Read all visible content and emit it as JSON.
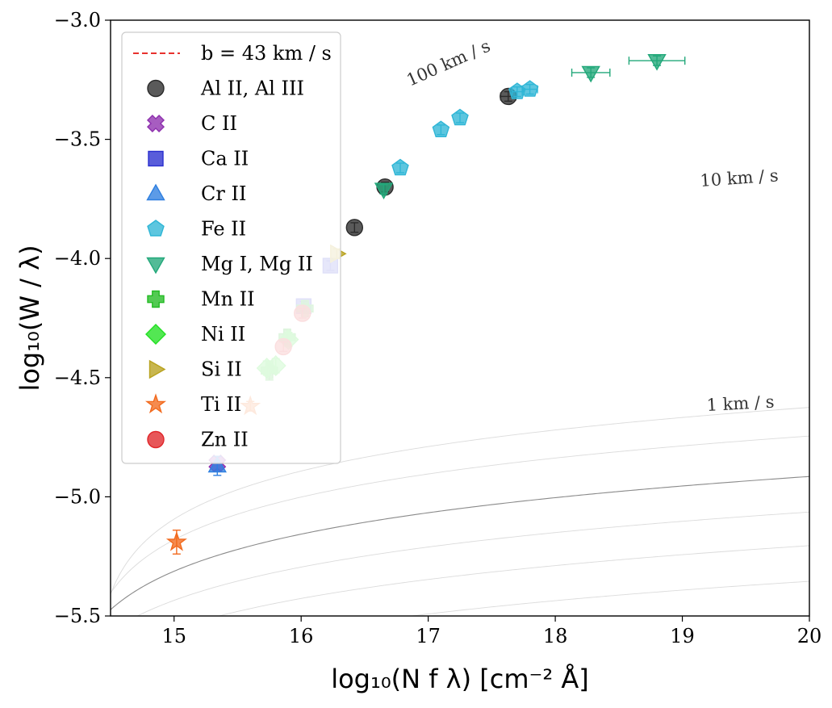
{
  "chart_data": {
    "type": "scatter",
    "title": "",
    "xlabel": "log₁₀(N f λ) [cm⁻² Å]",
    "ylabel": "log₁₀(W / λ)",
    "xlim": [
      14.5,
      20
    ],
    "ylim": [
      -5.5,
      -3.0
    ],
    "x_ticks": [
      "15",
      "16",
      "17",
      "18",
      "19",
      "20"
    ],
    "y_ticks": [
      "−3.0",
      "−3.5",
      "−4.0",
      "−4.5",
      "−5.0",
      "−5.5"
    ],
    "x_tick_values": [
      15,
      16,
      17,
      18,
      19,
      20
    ],
    "y_tick_values": [
      -3.0,
      -3.5,
      -4.0,
      -4.5,
      -5.0,
      -5.5
    ],
    "grid": false,
    "legend_placement": "top-left",
    "fit_curve": {
      "label": "b = 43 km / s",
      "b_kms": 43,
      "color": "#e8322e",
      "style": "dashed"
    },
    "reference_curves": [
      {
        "label": "100 km / s",
        "b_kms": 100
      },
      {
        "label": "10 km / s",
        "b_kms": 10
      },
      {
        "label": "1 km / s",
        "b_kms": 1
      }
    ],
    "series": [
      {
        "name": "Al II, Al III",
        "marker": "circle",
        "color": "#2b2b2b",
        "points": [
          [
            16.42,
            -3.87
          ],
          [
            16.66,
            -3.7
          ],
          [
            17.63,
            -3.32
          ]
        ],
        "xerr": [
          0,
          0,
          0.06
        ],
        "yerr": [
          0.02,
          0.02,
          0.02
        ]
      },
      {
        "name": "C II",
        "marker": "x",
        "color": "#8e2fae",
        "points": [
          [
            15.34,
            -4.86
          ]
        ],
        "xerr": [
          0
        ],
        "yerr": [
          0.03
        ]
      },
      {
        "name": "Ca II",
        "marker": "square",
        "color": "#2a2fcf",
        "points": [
          [
            16.02,
            -4.2
          ],
          [
            16.23,
            -4.03
          ]
        ],
        "xerr": [
          0,
          0
        ],
        "yerr": [
          0.02,
          0.02
        ]
      },
      {
        "name": "Cr II",
        "marker": "triangle-up",
        "color": "#2e7fe0",
        "points": [
          [
            15.34,
            -4.87
          ]
        ],
        "xerr": [
          0
        ],
        "yerr": [
          0.04
        ]
      },
      {
        "name": "Fe II",
        "marker": "pentagon",
        "color": "#2fb6d6",
        "points": [
          [
            16.78,
            -3.62
          ],
          [
            17.1,
            -3.46
          ],
          [
            17.25,
            -3.41
          ],
          [
            17.7,
            -3.3
          ],
          [
            17.8,
            -3.29
          ]
        ],
        "xerr": [
          0,
          0,
          0,
          0.04,
          0.06
        ],
        "yerr": [
          0.02,
          0.02,
          0.02,
          0.02,
          0.02
        ]
      },
      {
        "name": "Mg I, Mg II",
        "marker": "triangle-down",
        "color": "#22a87a",
        "points": [
          [
            16.65,
            -3.71
          ],
          [
            18.28,
            -3.22
          ],
          [
            18.8,
            -3.17
          ]
        ],
        "xerr": [
          0,
          0.15,
          0.22
        ],
        "yerr": [
          0.02,
          0.02,
          0.02
        ]
      },
      {
        "name": "Mn II",
        "marker": "plus",
        "color": "#22bb22",
        "points": [
          [
            15.75,
            -4.47
          ],
          [
            15.89,
            -4.33
          ],
          [
            16.03,
            -4.21
          ]
        ],
        "xerr": [
          0,
          0,
          0
        ],
        "yerr": [
          0.04,
          0.03,
          0.02
        ]
      },
      {
        "name": "Ni II",
        "marker": "diamond",
        "color": "#22e022",
        "points": [
          [
            15.73,
            -4.46
          ],
          [
            15.8,
            -4.45
          ],
          [
            15.9,
            -4.34
          ]
        ],
        "xerr": [
          0,
          0,
          0
        ],
        "yerr": [
          0.03,
          0.03,
          0.03
        ]
      },
      {
        "name": "Si II",
        "marker": "triangle-right",
        "color": "#b8a21e",
        "points": [
          [
            16.28,
            -3.98
          ]
        ],
        "xerr": [
          0
        ],
        "yerr": [
          0.02
        ]
      },
      {
        "name": "Ti II",
        "marker": "star",
        "color": "#f26a1e",
        "points": [
          [
            15.02,
            -5.19
          ],
          [
            15.6,
            -4.62
          ]
        ],
        "xerr": [
          0,
          0
        ],
        "yerr": [
          0.05,
          0.02
        ]
      },
      {
        "name": "Zn II",
        "marker": "circle",
        "color": "#e0262a",
        "points": [
          [
            15.86,
            -4.37
          ],
          [
            16.01,
            -4.23
          ]
        ],
        "xerr": [
          0,
          0
        ],
        "yerr": [
          0.02,
          0.02
        ]
      }
    ]
  }
}
